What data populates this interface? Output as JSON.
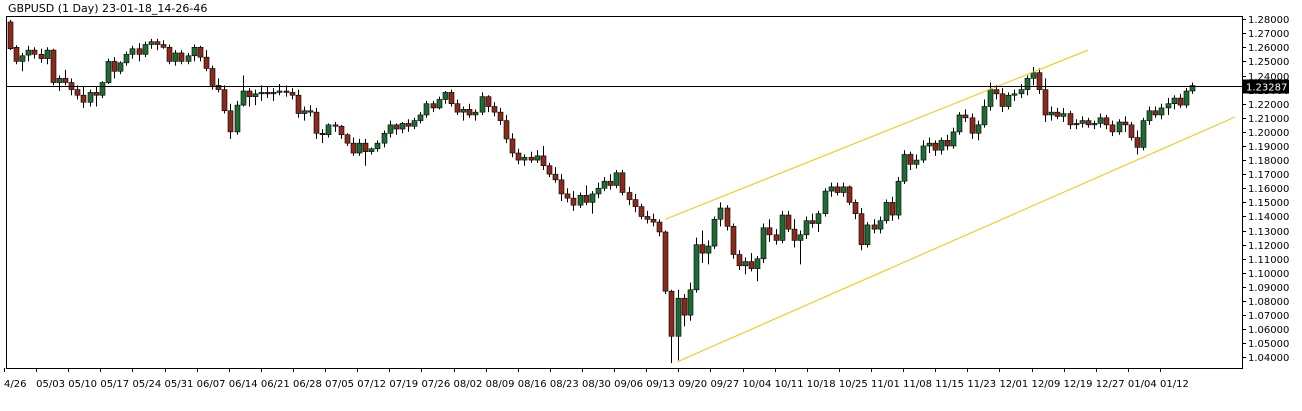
{
  "chart_data": {
    "type": "candlestick",
    "title": "GBPUSD (1 Day) 23-01-18_14-26-46",
    "ylim": [
      1.0325,
      1.2815
    ],
    "y_ticks": [
      "1.28000",
      "1.27000",
      "1.26000",
      "1.25000",
      "1.24000",
      "1.23000",
      "1.22000",
      "1.21000",
      "1.20000",
      "1.19000",
      "1.18000",
      "1.17000",
      "1.16000",
      "1.15000",
      "1.14000",
      "1.13000",
      "1.12000",
      "1.11000",
      "1.10000",
      "1.09000",
      "1.08000",
      "1.07000",
      "1.06000",
      "1.05000",
      "1.04000"
    ],
    "x_labels": [
      "4/26",
      "05/03",
      "05/10",
      "05/17",
      "05/24",
      "05/31",
      "06/07",
      "06/14",
      "06/21",
      "06/28",
      "07/05",
      "07/12",
      "07/19",
      "07/26",
      "08/02",
      "08/09",
      "08/16",
      "08/23",
      "08/30",
      "09/06",
      "09/13",
      "09/20",
      "09/27",
      "10/04",
      "10/11",
      "10/18",
      "10/25",
      "11/01",
      "11/08",
      "11/15",
      "11/23",
      "12/01",
      "12/09",
      "12/19",
      "12/27",
      "01/04",
      "01/12"
    ],
    "current_price": "1.23287",
    "current_price_value": 1.23287,
    "colors": {
      "up": "#1e6b36",
      "down": "#8b2a1a",
      "wick": "#000000",
      "channel": "#f5c400",
      "price_line": "#000000",
      "label_bg": "#000000",
      "label_text": "#ffffff"
    },
    "channel": {
      "upper": {
        "start": [
          "09/22",
          1.138
        ],
        "end": [
          "12/20",
          1.258
        ]
      },
      "lower": {
        "start": [
          "09/26",
          1.037
        ],
        "end": [
          "01/27",
          1.2105
        ]
      }
    },
    "candles": [
      [
        1.278,
        1.2795,
        1.258,
        1.259
      ],
      [
        1.26,
        1.2615,
        1.248,
        1.25
      ],
      [
        1.25,
        1.256,
        1.243,
        1.254
      ],
      [
        1.2545,
        1.261,
        1.25,
        1.258
      ],
      [
        1.258,
        1.26,
        1.252,
        1.255
      ],
      [
        1.255,
        1.259,
        1.249,
        1.252
      ],
      [
        1.252,
        1.26,
        1.248,
        1.258
      ],
      [
        1.258,
        1.259,
        1.233,
        1.235
      ],
      [
        1.235,
        1.24,
        1.229,
        1.238
      ],
      [
        1.238,
        1.244,
        1.233,
        1.235
      ],
      [
        1.235,
        1.238,
        1.226,
        1.23
      ],
      [
        1.23,
        1.233,
        1.223,
        1.226
      ],
      [
        1.226,
        1.232,
        1.217,
        1.221
      ],
      [
        1.221,
        1.23,
        1.218,
        1.228
      ],
      [
        1.228,
        1.232,
        1.218,
        1.226
      ],
      [
        1.226,
        1.236,
        1.224,
        1.235
      ],
      [
        1.235,
        1.252,
        1.234,
        1.25
      ],
      [
        1.25,
        1.253,
        1.238,
        1.243
      ],
      [
        1.243,
        1.25,
        1.241,
        1.249
      ],
      [
        1.249,
        1.257,
        1.247,
        1.255
      ],
      [
        1.255,
        1.261,
        1.252,
        1.259
      ],
      [
        1.259,
        1.263,
        1.25,
        1.255
      ],
      [
        1.255,
        1.264,
        1.253,
        1.262
      ],
      [
        1.262,
        1.266,
        1.259,
        1.264
      ],
      [
        1.264,
        1.266,
        1.258,
        1.262
      ],
      [
        1.262,
        1.265,
        1.259,
        1.26
      ],
      [
        1.26,
        1.262,
        1.248,
        1.25
      ],
      [
        1.25,
        1.258,
        1.247,
        1.256
      ],
      [
        1.256,
        1.258,
        1.248,
        1.25
      ],
      [
        1.25,
        1.256,
        1.248,
        1.254
      ],
      [
        1.254,
        1.262,
        1.25,
        1.26
      ],
      [
        1.26,
        1.261,
        1.25,
        1.253
      ],
      [
        1.253,
        1.258,
        1.243,
        1.245
      ],
      [
        1.245,
        1.247,
        1.23,
        1.233
      ],
      [
        1.233,
        1.238,
        1.228,
        1.23
      ],
      [
        1.23,
        1.233,
        1.213,
        1.215
      ],
      [
        1.215,
        1.22,
        1.195,
        1.2
      ],
      [
        1.2,
        1.222,
        1.198,
        1.219
      ],
      [
        1.219,
        1.24,
        1.218,
        1.229
      ],
      [
        1.229,
        1.231,
        1.218,
        1.225
      ],
      [
        1.225,
        1.23,
        1.219,
        1.227
      ],
      [
        1.227,
        1.233,
        1.222,
        1.228
      ],
      [
        1.228,
        1.232,
        1.224,
        1.227
      ],
      [
        1.227,
        1.231,
        1.222,
        1.228
      ],
      [
        1.228,
        1.234,
        1.226,
        1.229
      ],
      [
        1.229,
        1.233,
        1.225,
        1.228
      ],
      [
        1.228,
        1.231,
        1.223,
        1.226
      ],
      [
        1.226,
        1.23,
        1.21,
        1.213
      ],
      [
        1.213,
        1.218,
        1.208,
        1.215
      ],
      [
        1.215,
        1.219,
        1.211,
        1.214
      ],
      [
        1.214,
        1.217,
        1.195,
        1.199
      ],
      [
        1.199,
        1.202,
        1.192,
        1.198
      ],
      [
        1.198,
        1.206,
        1.196,
        1.205
      ],
      [
        1.205,
        1.207,
        1.2,
        1.204
      ],
      [
        1.204,
        1.205,
        1.195,
        1.198
      ],
      [
        1.198,
        1.199,
        1.19,
        1.192
      ],
      [
        1.192,
        1.196,
        1.183,
        1.185
      ],
      [
        1.185,
        1.195,
        1.183,
        1.192
      ],
      [
        1.192,
        1.195,
        1.176,
        1.186
      ],
      [
        1.186,
        1.189,
        1.184,
        1.188
      ],
      [
        1.188,
        1.194,
        1.186,
        1.192
      ],
      [
        1.192,
        1.201,
        1.189,
        1.199
      ],
      [
        1.199,
        1.208,
        1.196,
        1.205
      ],
      [
        1.205,
        1.206,
        1.198,
        1.202
      ],
      [
        1.202,
        1.207,
        1.199,
        1.206
      ],
      [
        1.206,
        1.209,
        1.2,
        1.204
      ],
      [
        1.204,
        1.21,
        1.202,
        1.208
      ],
      [
        1.208,
        1.214,
        1.206,
        1.212
      ],
      [
        1.212,
        1.222,
        1.21,
        1.22
      ],
      [
        1.22,
        1.222,
        1.214,
        1.217
      ],
      [
        1.217,
        1.225,
        1.216,
        1.223
      ],
      [
        1.223,
        1.229,
        1.22,
        1.228
      ],
      [
        1.228,
        1.23,
        1.218,
        1.22
      ],
      [
        1.22,
        1.223,
        1.212,
        1.214
      ],
      [
        1.214,
        1.218,
        1.208,
        1.216
      ],
      [
        1.216,
        1.22,
        1.21,
        1.212
      ],
      [
        1.212,
        1.216,
        1.208,
        1.214
      ],
      [
        1.214,
        1.228,
        1.212,
        1.225
      ],
      [
        1.225,
        1.226,
        1.214,
        1.218
      ],
      [
        1.218,
        1.221,
        1.211,
        1.214
      ],
      [
        1.214,
        1.217,
        1.205,
        1.208
      ],
      [
        1.208,
        1.212,
        1.192,
        1.195
      ],
      [
        1.195,
        1.199,
        1.182,
        1.185
      ],
      [
        1.185,
        1.188,
        1.177,
        1.18
      ],
      [
        1.18,
        1.184,
        1.176,
        1.182
      ],
      [
        1.182,
        1.186,
        1.178,
        1.18
      ],
      [
        1.18,
        1.187,
        1.178,
        1.183
      ],
      [
        1.183,
        1.19,
        1.173,
        1.176
      ],
      [
        1.176,
        1.178,
        1.168,
        1.17
      ],
      [
        1.17,
        1.175,
        1.164,
        1.166
      ],
      [
        1.166,
        1.17,
        1.151,
        1.156
      ],
      [
        1.156,
        1.16,
        1.15,
        1.153
      ],
      [
        1.153,
        1.158,
        1.144,
        1.148
      ],
      [
        1.148,
        1.157,
        1.146,
        1.155
      ],
      [
        1.155,
        1.162,
        1.148,
        1.15
      ],
      [
        1.15,
        1.158,
        1.142,
        1.156
      ],
      [
        1.156,
        1.164,
        1.153,
        1.16
      ],
      [
        1.16,
        1.168,
        1.158,
        1.165
      ],
      [
        1.165,
        1.17,
        1.159,
        1.162
      ],
      [
        1.162,
        1.173,
        1.16,
        1.171
      ],
      [
        1.171,
        1.173,
        1.155,
        1.157
      ],
      [
        1.157,
        1.161,
        1.148,
        1.152
      ],
      [
        1.152,
        1.156,
        1.143,
        1.147
      ],
      [
        1.147,
        1.149,
        1.138,
        1.14
      ],
      [
        1.14,
        1.144,
        1.135,
        1.138
      ],
      [
        1.138,
        1.142,
        1.133,
        1.136
      ],
      [
        1.136,
        1.138,
        1.126,
        1.129
      ],
      [
        1.129,
        1.13,
        1.085,
        1.087
      ],
      [
        1.087,
        1.088,
        1.036,
        1.055
      ],
      [
        1.055,
        1.088,
        1.038,
        1.082
      ],
      [
        1.082,
        1.085,
        1.062,
        1.07
      ],
      [
        1.07,
        1.093,
        1.066,
        1.088
      ],
      [
        1.088,
        1.125,
        1.086,
        1.12
      ],
      [
        1.12,
        1.13,
        1.107,
        1.114
      ],
      [
        1.114,
        1.123,
        1.106,
        1.119
      ],
      [
        1.119,
        1.14,
        1.117,
        1.138
      ],
      [
        1.138,
        1.15,
        1.133,
        1.146
      ],
      [
        1.146,
        1.148,
        1.13,
        1.133
      ],
      [
        1.133,
        1.135,
        1.11,
        1.113
      ],
      [
        1.113,
        1.116,
        1.102,
        1.105
      ],
      [
        1.105,
        1.111,
        1.099,
        1.108
      ],
      [
        1.108,
        1.114,
        1.101,
        1.103
      ],
      [
        1.103,
        1.112,
        1.094,
        1.11
      ],
      [
        1.11,
        1.135,
        1.107,
        1.132
      ],
      [
        1.132,
        1.138,
        1.122,
        1.127
      ],
      [
        1.127,
        1.131,
        1.12,
        1.123
      ],
      [
        1.123,
        1.144,
        1.121,
        1.141
      ],
      [
        1.141,
        1.144,
        1.129,
        1.131
      ],
      [
        1.131,
        1.138,
        1.118,
        1.123
      ],
      [
        1.123,
        1.13,
        1.106,
        1.127
      ],
      [
        1.127,
        1.14,
        1.124,
        1.137
      ],
      [
        1.137,
        1.142,
        1.132,
        1.135
      ],
      [
        1.135,
        1.144,
        1.129,
        1.142
      ],
      [
        1.142,
        1.16,
        1.14,
        1.158
      ],
      [
        1.158,
        1.164,
        1.154,
        1.161
      ],
      [
        1.161,
        1.164,
        1.155,
        1.157
      ],
      [
        1.157,
        1.164,
        1.154,
        1.161
      ],
      [
        1.161,
        1.162,
        1.148,
        1.15
      ],
      [
        1.15,
        1.152,
        1.138,
        1.142
      ],
      [
        1.142,
        1.146,
        1.116,
        1.12
      ],
      [
        1.12,
        1.136,
        1.118,
        1.134
      ],
      [
        1.134,
        1.138,
        1.128,
        1.131
      ],
      [
        1.131,
        1.14,
        1.128,
        1.137
      ],
      [
        1.137,
        1.152,
        1.135,
        1.15
      ],
      [
        1.15,
        1.154,
        1.137,
        1.141
      ],
      [
        1.141,
        1.168,
        1.138,
        1.165
      ],
      [
        1.165,
        1.187,
        1.163,
        1.184
      ],
      [
        1.184,
        1.186,
        1.173,
        1.177
      ],
      [
        1.177,
        1.184,
        1.174,
        1.18
      ],
      [
        1.18,
        1.194,
        1.178,
        1.19
      ],
      [
        1.19,
        1.196,
        1.185,
        1.192
      ],
      [
        1.192,
        1.194,
        1.183,
        1.187
      ],
      [
        1.187,
        1.196,
        1.184,
        1.194
      ],
      [
        1.194,
        1.198,
        1.187,
        1.19
      ],
      [
        1.19,
        1.203,
        1.188,
        1.2
      ],
      [
        1.2,
        1.214,
        1.198,
        1.212
      ],
      [
        1.212,
        1.216,
        1.207,
        1.21
      ],
      [
        1.21,
        1.213,
        1.195,
        1.199
      ],
      [
        1.199,
        1.208,
        1.194,
        1.205
      ],
      [
        1.205,
        1.223,
        1.203,
        1.218
      ],
      [
        1.218,
        1.235,
        1.215,
        1.23
      ],
      [
        1.23,
        1.233,
        1.223,
        1.227
      ],
      [
        1.227,
        1.231,
        1.214,
        1.218
      ],
      [
        1.218,
        1.228,
        1.216,
        1.226
      ],
      [
        1.226,
        1.23,
        1.222,
        1.227
      ],
      [
        1.227,
        1.234,
        1.224,
        1.23
      ],
      [
        1.23,
        1.24,
        1.226,
        1.238
      ],
      [
        1.238,
        1.246,
        1.233,
        1.242
      ],
      [
        1.242,
        1.245,
        1.227,
        1.23
      ],
      [
        1.23,
        1.238,
        1.207,
        1.212
      ],
      [
        1.212,
        1.218,
        1.208,
        1.214
      ],
      [
        1.214,
        1.217,
        1.209,
        1.211
      ],
      [
        1.211,
        1.217,
        1.207,
        1.213
      ],
      [
        1.213,
        1.215,
        1.202,
        1.205
      ],
      [
        1.205,
        1.209,
        1.202,
        1.206
      ],
      [
        1.206,
        1.211,
        1.203,
        1.208
      ],
      [
        1.208,
        1.21,
        1.203,
        1.205
      ],
      [
        1.205,
        1.208,
        1.202,
        1.206
      ],
      [
        1.206,
        1.213,
        1.203,
        1.21
      ],
      [
        1.21,
        1.212,
        1.202,
        1.205
      ],
      [
        1.205,
        1.208,
        1.197,
        1.2
      ],
      [
        1.2,
        1.209,
        1.198,
        1.207
      ],
      [
        1.207,
        1.211,
        1.2,
        1.205
      ],
      [
        1.205,
        1.207,
        1.194,
        1.196
      ],
      [
        1.196,
        1.201,
        1.184,
        1.189
      ],
      [
        1.189,
        1.21,
        1.187,
        1.208
      ],
      [
        1.208,
        1.218,
        1.205,
        1.215
      ],
      [
        1.215,
        1.218,
        1.21,
        1.212
      ],
      [
        1.212,
        1.22,
        1.209,
        1.217
      ],
      [
        1.217,
        1.224,
        1.212,
        1.22
      ],
      [
        1.22,
        1.226,
        1.216,
        1.224
      ],
      [
        1.224,
        1.227,
        1.217,
        1.219
      ],
      [
        1.219,
        1.231,
        1.217,
        1.229
      ],
      [
        1.229,
        1.235,
        1.227,
        1.2329
      ]
    ]
  }
}
